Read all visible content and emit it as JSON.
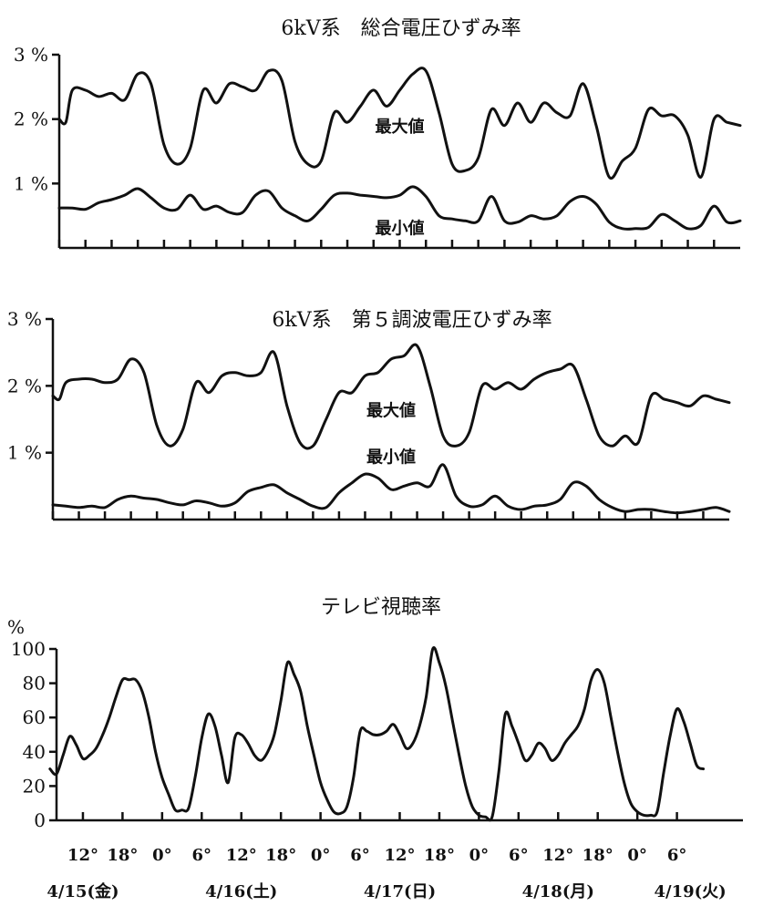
{
  "chart_data": [
    {
      "type": "line",
      "title": "6kV系　総合電圧ひずみ率",
      "ylim": [
        0,
        3
      ],
      "yticks": [
        {
          "v": 1,
          "label": "1 %"
        },
        {
          "v": 2,
          "label": "2 %"
        },
        {
          "v": 3,
          "label": "3 %"
        }
      ],
      "xlim": [
        8,
        112
      ],
      "annotations": [
        {
          "text": "最大値",
          "x": 60,
          "y": 1.8
        },
        {
          "text": "最小値",
          "x": 60,
          "y": 0.22
        }
      ],
      "series": [
        {
          "name": "最大値",
          "x": [
            8,
            9,
            10,
            12,
            14,
            16,
            18,
            20,
            22,
            24,
            26,
            28,
            30,
            32,
            34,
            36,
            38,
            40,
            42,
            44,
            46,
            48,
            50,
            52,
            54,
            56,
            58,
            60,
            62,
            64,
            66,
            68,
            70,
            72,
            74,
            76,
            78,
            80,
            82,
            84,
            86,
            88,
            90,
            92,
            94,
            96,
            98,
            100,
            102,
            104,
            106,
            108,
            110,
            112
          ],
          "values": [
            2.0,
            1.95,
            2.45,
            2.45,
            2.35,
            2.4,
            2.3,
            2.7,
            2.55,
            1.6,
            1.3,
            1.55,
            2.45,
            2.25,
            2.55,
            2.5,
            2.45,
            2.75,
            2.6,
            1.65,
            1.3,
            1.35,
            2.1,
            1.95,
            2.2,
            2.45,
            2.2,
            2.45,
            2.7,
            2.75,
            2.1,
            1.3,
            1.2,
            1.4,
            2.15,
            1.9,
            2.25,
            1.95,
            2.25,
            2.1,
            2.05,
            2.55,
            1.9,
            1.1,
            1.35,
            1.55,
            2.15,
            2.05,
            2.05,
            1.75,
            1.1,
            2.0,
            1.95,
            1.9
          ]
        },
        {
          "name": "最小値",
          "x": [
            8,
            10,
            12,
            14,
            16,
            18,
            20,
            22,
            24,
            26,
            28,
            30,
            32,
            34,
            36,
            38,
            40,
            42,
            44,
            46,
            48,
            50,
            52,
            54,
            56,
            58,
            60,
            62,
            64,
            66,
            68,
            70,
            72,
            74,
            76,
            78,
            80,
            82,
            84,
            86,
            88,
            90,
            92,
            94,
            96,
            98,
            100,
            102,
            104,
            106,
            108,
            110,
            112
          ],
          "values": [
            0.62,
            0.62,
            0.6,
            0.7,
            0.75,
            0.82,
            0.92,
            0.78,
            0.62,
            0.6,
            0.82,
            0.6,
            0.65,
            0.55,
            0.55,
            0.82,
            0.88,
            0.62,
            0.5,
            0.42,
            0.6,
            0.82,
            0.85,
            0.82,
            0.8,
            0.78,
            0.82,
            0.95,
            0.8,
            0.5,
            0.45,
            0.42,
            0.42,
            0.8,
            0.42,
            0.4,
            0.5,
            0.45,
            0.5,
            0.72,
            0.8,
            0.68,
            0.4,
            0.3,
            0.3,
            0.32,
            0.52,
            0.42,
            0.3,
            0.35,
            0.65,
            0.4,
            0.42
          ]
        }
      ]
    },
    {
      "type": "line",
      "title": "6kV系　第５調波電圧ひずみ率",
      "ylim": [
        0,
        3
      ],
      "yticks": [
        {
          "v": 1,
          "label": "1 %"
        },
        {
          "v": 2,
          "label": "2 %"
        },
        {
          "v": 3,
          "label": "3 %"
        }
      ],
      "xlim": [
        8,
        112
      ],
      "annotations": [
        {
          "text": "最大値",
          "x": 60,
          "y": 1.55
        },
        {
          "text": "最小値",
          "x": 60,
          "y": 0.85
        }
      ],
      "series": [
        {
          "name": "最大値",
          "x": [
            8,
            9,
            10,
            12,
            14,
            16,
            18,
            20,
            22,
            24,
            26,
            28,
            30,
            32,
            34,
            36,
            38,
            40,
            42,
            44,
            46,
            48,
            50,
            52,
            54,
            56,
            58,
            60,
            62,
            64,
            66,
            68,
            70,
            72,
            74,
            76,
            78,
            80,
            82,
            84,
            86,
            88,
            90,
            92,
            94,
            96,
            98,
            100,
            102,
            104,
            106,
            108,
            110,
            112
          ],
          "values": [
            1.85,
            1.8,
            2.05,
            2.1,
            2.1,
            2.05,
            2.1,
            2.4,
            2.2,
            1.4,
            1.1,
            1.35,
            2.05,
            1.9,
            2.15,
            2.2,
            2.15,
            2.2,
            2.5,
            1.7,
            1.15,
            1.1,
            1.5,
            1.9,
            1.9,
            2.15,
            2.2,
            2.4,
            2.45,
            2.6,
            2.0,
            1.25,
            1.1,
            1.3,
            2.0,
            1.95,
            2.05,
            1.95,
            2.1,
            2.2,
            2.25,
            2.3,
            1.8,
            1.25,
            1.1,
            1.25,
            1.15,
            1.85,
            1.8,
            1.75,
            1.7,
            1.85,
            1.8,
            1.75
          ]
        },
        {
          "name": "最小値",
          "x": [
            8,
            10,
            12,
            14,
            16,
            18,
            20,
            22,
            24,
            26,
            28,
            30,
            32,
            34,
            36,
            38,
            40,
            42,
            44,
            46,
            48,
            50,
            52,
            54,
            56,
            58,
            60,
            62,
            64,
            66,
            68,
            70,
            72,
            74,
            76,
            78,
            80,
            82,
            84,
            86,
            88,
            90,
            92,
            94,
            96,
            98,
            100,
            102,
            104,
            106,
            108,
            110,
            112
          ],
          "values": [
            0.22,
            0.2,
            0.18,
            0.2,
            0.18,
            0.3,
            0.35,
            0.32,
            0.3,
            0.25,
            0.22,
            0.28,
            0.25,
            0.2,
            0.25,
            0.42,
            0.48,
            0.52,
            0.4,
            0.3,
            0.2,
            0.18,
            0.4,
            0.55,
            0.68,
            0.62,
            0.45,
            0.5,
            0.55,
            0.5,
            0.82,
            0.35,
            0.2,
            0.22,
            0.35,
            0.2,
            0.15,
            0.2,
            0.22,
            0.3,
            0.55,
            0.5,
            0.3,
            0.18,
            0.12,
            0.15,
            0.15,
            0.12,
            0.1,
            0.12,
            0.15,
            0.18,
            0.12
          ]
        }
      ]
    },
    {
      "type": "line",
      "title": "テレビ視聴率",
      "ylabel": "%",
      "ylim": [
        0,
        100
      ],
      "yticks": [
        {
          "v": 0,
          "label": "0"
        },
        {
          "v": 20,
          "label": "20"
        },
        {
          "v": 40,
          "label": "40"
        },
        {
          "v": 60,
          "label": "60"
        },
        {
          "v": 80,
          "label": "80"
        },
        {
          "v": 100,
          "label": "100"
        }
      ],
      "xlim": [
        8,
        112
      ],
      "xticks": [
        {
          "v": 12,
          "label": "12°"
        },
        {
          "v": 18,
          "label": "18°"
        },
        {
          "v": 24,
          "label": "0°"
        },
        {
          "v": 30,
          "label": "6°"
        },
        {
          "v": 36,
          "label": "12°"
        },
        {
          "v": 42,
          "label": "18°"
        },
        {
          "v": 48,
          "label": "0°"
        },
        {
          "v": 54,
          "label": "6°"
        },
        {
          "v": 60,
          "label": "12°"
        },
        {
          "v": 66,
          "label": "18°"
        },
        {
          "v": 72,
          "label": "0°"
        },
        {
          "v": 78,
          "label": "6°"
        },
        {
          "v": 84,
          "label": "12°"
        },
        {
          "v": 90,
          "label": "18°"
        },
        {
          "v": 96,
          "label": "0°"
        },
        {
          "v": 102,
          "label": "6°"
        }
      ],
      "dates": [
        {
          "v": 12,
          "label": "4/15(金)"
        },
        {
          "v": 36,
          "label": "4/16(土)"
        },
        {
          "v": 60,
          "label": "4/17(日)"
        },
        {
          "v": 84,
          "label": "4/18(月)"
        },
        {
          "v": 104,
          "label": "4/19(火)"
        }
      ],
      "series": [
        {
          "name": "",
          "x": [
            7,
            8,
            9,
            10,
            11,
            12,
            13,
            14,
            15,
            16,
            17,
            18,
            19,
            20,
            21,
            22,
            23,
            24,
            25,
            26,
            27,
            28,
            29,
            30,
            31,
            32,
            33,
            34,
            35,
            36,
            37,
            38,
            39,
            40,
            41,
            42,
            43,
            44,
            45,
            46,
            47,
            48,
            49,
            50,
            51,
            52,
            53,
            54,
            55,
            56,
            57,
            58,
            59,
            60,
            61,
            62,
            63,
            64,
            65,
            66,
            67,
            68,
            69,
            70,
            71,
            72,
            73,
            74,
            75,
            76,
            77,
            78,
            79,
            80,
            81,
            82,
            83,
            84,
            85,
            86,
            87,
            88,
            89,
            90,
            91,
            92,
            93,
            94,
            95,
            96,
            97,
            98,
            99,
            100,
            101,
            102,
            103,
            104,
            105,
            106
          ],
          "values": [
            30,
            27,
            38,
            49,
            44,
            36,
            38,
            42,
            50,
            60,
            72,
            82,
            82,
            82,
            75,
            60,
            40,
            25,
            15,
            6,
            6,
            7,
            25,
            48,
            62,
            55,
            38,
            22,
            48,
            50,
            45,
            38,
            35,
            40,
            50,
            70,
            92,
            85,
            75,
            55,
            38,
            22,
            12,
            5,
            4,
            8,
            25,
            52,
            52,
            50,
            50,
            52,
            56,
            50,
            42,
            45,
            55,
            72,
            100,
            92,
            78,
            58,
            38,
            20,
            8,
            3,
            2,
            2,
            28,
            62,
            55,
            45,
            35,
            38,
            45,
            42,
            35,
            38,
            45,
            50,
            55,
            65,
            82,
            88,
            80,
            60,
            40,
            22,
            10,
            5,
            3,
            3,
            5,
            28,
            50,
            65,
            58,
            45,
            32,
            30
          ]
        }
      ]
    }
  ]
}
